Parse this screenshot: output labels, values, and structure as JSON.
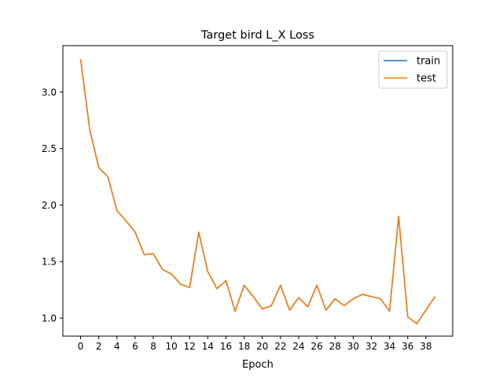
{
  "chart_data": {
    "type": "line",
    "title": "Target bird L_X Loss",
    "xlabel": "Epoch",
    "ylabel": "",
    "xlim": [
      -1.95,
      40.95
    ],
    "ylim": [
      0.84,
      3.41
    ],
    "xticks": [
      0,
      2,
      4,
      6,
      8,
      10,
      12,
      14,
      16,
      18,
      20,
      22,
      24,
      26,
      28,
      30,
      32,
      34,
      36,
      38
    ],
    "yticks": [
      1.0,
      1.5,
      2.0,
      2.5,
      3.0
    ],
    "ytick_labels": [
      "1.0",
      "1.5",
      "2.0",
      "2.5",
      "3.0"
    ],
    "legend_position": "top-right",
    "x": [
      0,
      1,
      2,
      3,
      4,
      5,
      6,
      7,
      8,
      9,
      10,
      11,
      12,
      13,
      14,
      15,
      16,
      17,
      18,
      19,
      20,
      21,
      22,
      23,
      24,
      25,
      26,
      27,
      28,
      29,
      30,
      31,
      32,
      33,
      34,
      35,
      36,
      37,
      38,
      39
    ],
    "series": [
      {
        "name": "train",
        "color": "#1f77b4",
        "values": [
          3.29,
          2.67,
          2.33,
          2.25,
          1.95,
          1.86,
          1.76,
          1.56,
          1.57,
          1.43,
          1.39,
          1.3,
          1.27,
          1.76,
          1.41,
          1.26,
          1.33,
          1.06,
          1.29,
          1.19,
          1.08,
          1.11,
          1.29,
          1.07,
          1.18,
          1.1,
          1.29,
          1.07,
          1.17,
          1.11,
          1.17,
          1.21,
          1.19,
          1.17,
          1.06,
          1.9,
          1.01,
          0.95,
          1.07,
          1.19
        ]
      },
      {
        "name": "test",
        "color": "#ff7f0e",
        "values": [
          3.29,
          2.67,
          2.33,
          2.25,
          1.95,
          1.86,
          1.76,
          1.56,
          1.57,
          1.43,
          1.39,
          1.3,
          1.27,
          1.76,
          1.41,
          1.26,
          1.33,
          1.06,
          1.29,
          1.19,
          1.08,
          1.11,
          1.29,
          1.07,
          1.18,
          1.1,
          1.29,
          1.07,
          1.17,
          1.11,
          1.17,
          1.21,
          1.19,
          1.17,
          1.06,
          1.9,
          1.01,
          0.95,
          1.07,
          1.19
        ]
      }
    ]
  }
}
